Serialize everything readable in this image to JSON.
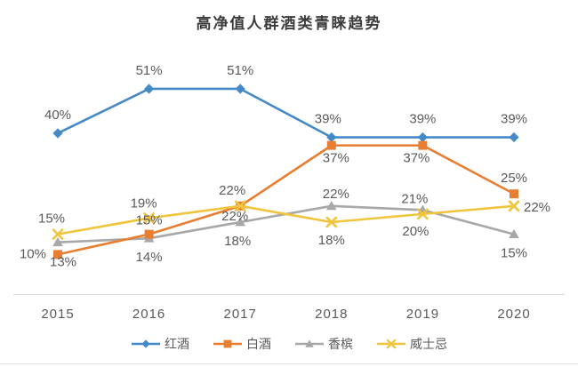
{
  "title": "高净值人群酒类青睐趋势",
  "chart_data": {
    "type": "line",
    "categories": [
      "2015",
      "2016",
      "2017",
      "2018",
      "2019",
      "2020"
    ],
    "series": [
      {
        "name": "红酒",
        "slug": "red-wine",
        "color": "#4589C6",
        "marker": "diamond",
        "z": 0,
        "values": [
          40,
          51,
          51,
          39,
          39,
          39
        ],
        "labels": [
          "40%",
          "51%",
          "51%",
          "39%",
          "39%",
          "39%"
        ],
        "label_offsets": [
          [
            0,
            -16,
            "m"
          ],
          [
            0,
            -16,
            "m"
          ],
          [
            0,
            -16,
            "m"
          ],
          [
            -4,
            -16,
            "m"
          ],
          [
            0,
            -16,
            "m"
          ],
          [
            0,
            -16,
            "m"
          ]
        ]
      },
      {
        "name": "白酒",
        "slug": "baijiu",
        "color": "#E87E31",
        "marker": "square",
        "z": 2,
        "values": [
          10,
          15,
          22,
          37,
          37,
          25
        ],
        "labels": [
          "10%",
          "15%",
          "22%",
          "37%",
          "37%",
          "25%"
        ],
        "label_offsets": [
          [
            -13,
            4,
            "e"
          ],
          [
            0,
            -11,
            "m"
          ],
          [
            -6,
            16,
            "m"
          ],
          [
            5,
            19,
            "m"
          ],
          [
            -7,
            19,
            "m"
          ],
          [
            0,
            -13,
            "m"
          ]
        ]
      },
      {
        "name": "香槟",
        "slug": "champagne",
        "color": "#A8A8A8",
        "marker": "triangle",
        "z": 1,
        "values": [
          13,
          14,
          18,
          22,
          21,
          15
        ],
        "labels": [
          "13%",
          "14%",
          "18%",
          "22%",
          "21%",
          "15%"
        ],
        "label_offsets": [
          [
            6,
            27,
            "m"
          ],
          [
            0,
            26,
            "m"
          ],
          [
            -3,
            26,
            "m"
          ],
          [
            5,
            -9,
            "m"
          ],
          [
            -9,
            -8,
            "m"
          ],
          [
            0,
            26,
            "m"
          ]
        ]
      },
      {
        "name": "威士忌",
        "slug": "whisky",
        "color": "#F0C43C",
        "marker": "x",
        "z": 3,
        "values": [
          15,
          19,
          22,
          18,
          20,
          22
        ],
        "labels": [
          "15%",
          "19%",
          "22%",
          "18%",
          "20%",
          "22%"
        ],
        "label_offsets": [
          [
            -7,
            -13,
            "m"
          ],
          [
            -6,
            -12,
            "m"
          ],
          [
            -9,
            -13,
            "m"
          ],
          [
            0,
            25,
            "m"
          ],
          [
            -8,
            24,
            "m"
          ],
          [
            11,
            6,
            "s"
          ]
        ]
      }
    ],
    "xlabel": "",
    "ylabel": "",
    "ylim": [
      0,
      60
    ],
    "grid": false,
    "data_labels": true,
    "legend_position": "bottom",
    "axis_line_color": "#D9D9D9",
    "label_color": "#595959"
  }
}
